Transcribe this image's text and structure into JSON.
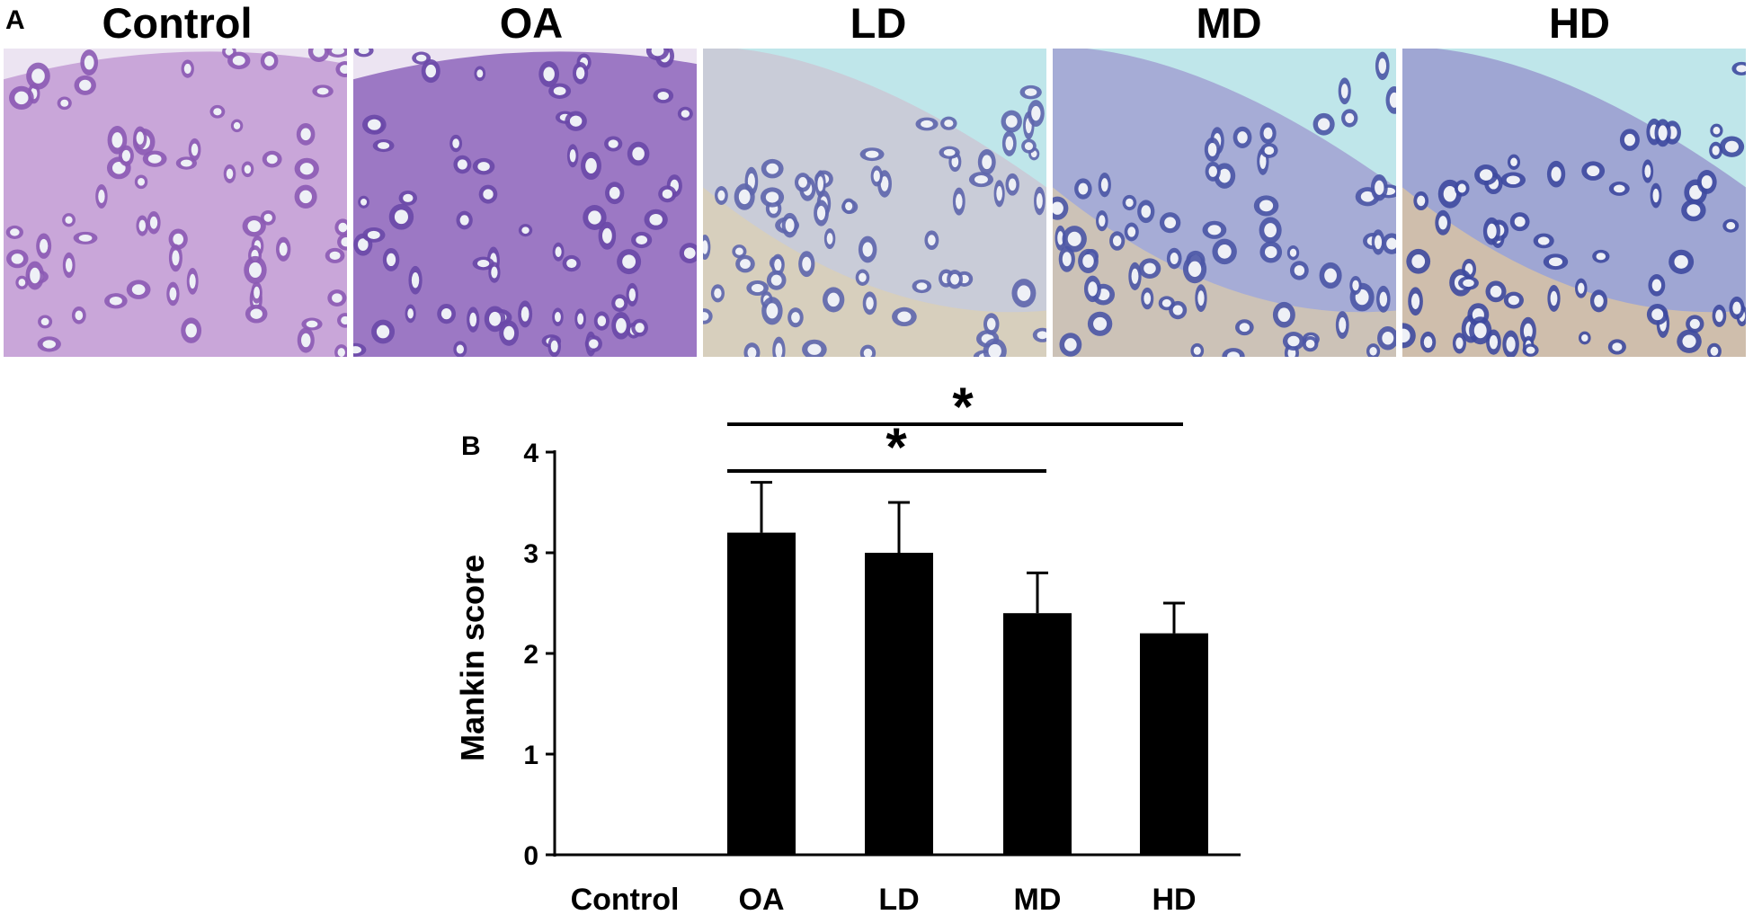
{
  "figure": {
    "panel_a_letter": "A",
    "panel_b_letter": "B",
    "micrographs": [
      {
        "label": "Control",
        "tissue": "#c9a6d9",
        "cell": "#8c5bb4",
        "matrix": "#d8b7e3"
      },
      {
        "label": "OA",
        "tissue": "#9c78c4",
        "cell": "#6a48a8",
        "matrix": "#b898d6"
      },
      {
        "label": "LD",
        "tissue": "#c9ccd8",
        "cell": "#5e66ad",
        "matrix": "#d9cfb9"
      },
      {
        "label": "MD",
        "tissue": "#a6acd6",
        "cell": "#4b56a6",
        "matrix": "#d2c6b2"
      },
      {
        "label": "HD",
        "tissue": "#9fa6d3",
        "cell": "#3e4aa0",
        "matrix": "#d7c2a4"
      }
    ]
  },
  "chart_data": {
    "type": "bar",
    "categories": [
      "Control",
      "OA",
      "LD",
      "MD",
      "HD"
    ],
    "values": [
      0,
      3.2,
      3.0,
      2.4,
      2.2
    ],
    "errors": [
      0,
      0.5,
      0.5,
      0.4,
      0.3
    ],
    "ylabel": "Mankin score",
    "xlabel": "",
    "ylim": [
      0,
      4
    ],
    "yticks": [
      0,
      1,
      2,
      3,
      4
    ],
    "bar_color": "#000000",
    "grid": false,
    "significance": [
      {
        "from": "OA",
        "to": "MD",
        "label": "*"
      },
      {
        "from": "OA",
        "to": "HD",
        "label": "*"
      }
    ]
  }
}
